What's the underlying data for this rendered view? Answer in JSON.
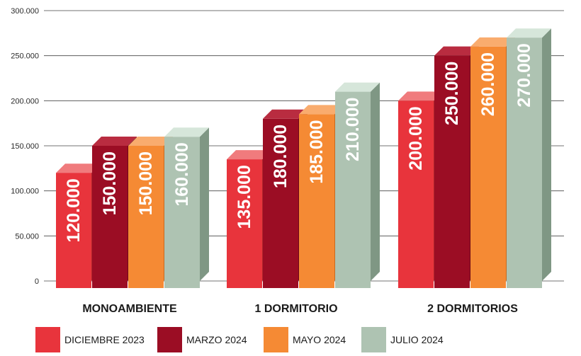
{
  "chart_data": {
    "type": "bar",
    "title": "",
    "xlabel": "",
    "ylabel": "",
    "ylim": [
      0,
      300000
    ],
    "yticks": [
      0,
      50000,
      100000,
      150000,
      200000,
      250000,
      300000
    ],
    "ytick_labels": [
      "0",
      "50.000",
      "100.000",
      "150.000",
      "200.000",
      "250.000",
      "300.000"
    ],
    "grid": true,
    "legend_position": "bottom",
    "style": "3d-columns",
    "categories": [
      "MONOAMBIENTE",
      "1 DORMITORIO",
      "2 DORMITORIOS"
    ],
    "series": [
      {
        "name": "DICIEMBRE 2023",
        "color": "#e8343c",
        "top_color": "#f07b7d",
        "side_color": "#b0262c",
        "values": [
          120000,
          135000,
          200000
        ],
        "labels": [
          "120.000",
          "135.000",
          "200.000"
        ]
      },
      {
        "name": "MARZO 2024",
        "color": "#9b0d24",
        "top_color": "#b92c40",
        "side_color": "#6e0818",
        "values": [
          150000,
          180000,
          250000
        ],
        "labels": [
          "150.000",
          "180.000",
          "250.000"
        ]
      },
      {
        "name": "MAYO 2024",
        "color": "#f58a34",
        "top_color": "#f9ac6e",
        "side_color": "#c86a20",
        "values": [
          150000,
          185000,
          260000
        ],
        "labels": [
          "150.000",
          "185.000",
          "260.000"
        ]
      },
      {
        "name": "JULIO 2024",
        "color": "#aec3b2",
        "top_color": "#d6e6da",
        "side_color": "#7f9784",
        "values": [
          160000,
          210000,
          270000
        ],
        "labels": [
          "160.000",
          "210.000",
          "270.000"
        ]
      }
    ]
  }
}
